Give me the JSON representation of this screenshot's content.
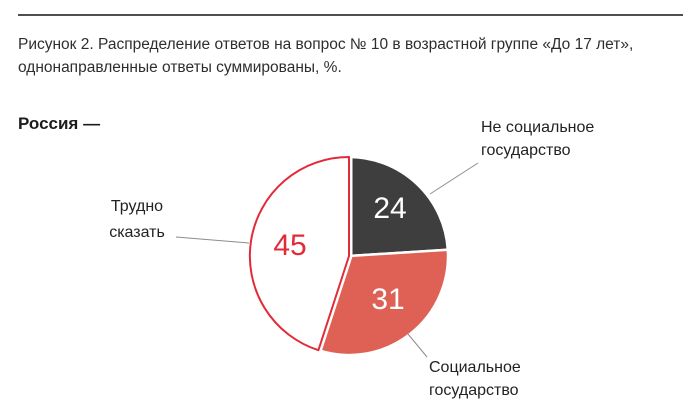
{
  "figure": {
    "title_line1": "Рисунок 2. Распределение ответов на вопрос № 10 в возрастной группе «До 17 лет»,",
    "title_line2": "однонаправленные ответы суммированы, %.",
    "region_label": "Россия —"
  },
  "chart_data": {
    "type": "pie",
    "title": "Россия",
    "unit": "%",
    "labels": [
      "Не социальное государство",
      "Социальное государство",
      "Трудно сказать"
    ],
    "values": [
      24,
      31,
      45
    ],
    "colors": [
      "#3e3e3e",
      "#df6156",
      "#ffffff"
    ],
    "slice_strokes": [
      "#ffffff",
      "#ffffff",
      "#e22b38"
    ],
    "value_label_colors": [
      "#ffffff",
      "#ffffff",
      "#e22b38"
    ],
    "start_angle_deg": 0,
    "direction": "clockwise",
    "legend": "none",
    "leader_line_color": "#8c8c8c",
    "callouts": [
      {
        "line1": "Не социальное",
        "line2": "государство"
      },
      {
        "line1": "Социальное",
        "line2": "государство"
      },
      {
        "line1": "Трудно",
        "line2": "сказать"
      }
    ]
  }
}
